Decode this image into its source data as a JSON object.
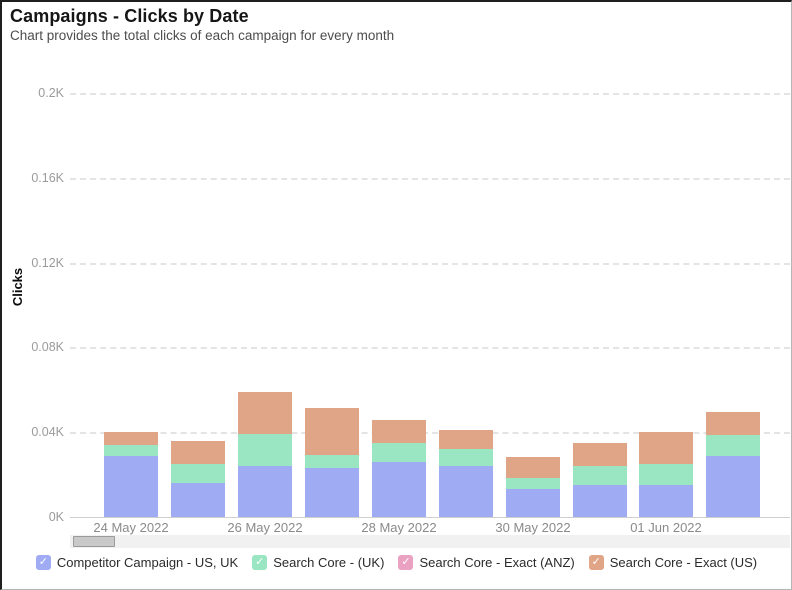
{
  "header": {
    "title": "Campaigns - Clicks by Date",
    "subtitle": "Chart provides the total clicks of each campaign for every month"
  },
  "legend": {
    "check_glyph": "✓",
    "position": "bottom"
  },
  "chart_data": {
    "type": "bar",
    "stacked": true,
    "title": "Campaigns - Clicks by Date",
    "ylabel": "Clicks",
    "xlabel": "",
    "grid": "dashed-horizontal",
    "legend_position": "bottom",
    "y_ticks": [
      "0K",
      "0.04K",
      "0.08K",
      "0.12K",
      "0.16K",
      "0.2K"
    ],
    "ylim_clicks": [
      0,
      200
    ],
    "num_bars": 10,
    "x_tick_labels": [
      "24 May 2022",
      "26 May 2022",
      "28 May 2022",
      "30 May 2022",
      "01 Jun 2022"
    ],
    "x_tick_bar_indices": [
      0,
      2,
      4,
      6,
      8
    ],
    "series": [
      {
        "name": "Competitor Campaign - US, UK",
        "color": "#9fabf2",
        "values": [
          29,
          16,
          24,
          23,
          26,
          24,
          13,
          15,
          15,
          29
        ]
      },
      {
        "name": "Search Core - (UK)",
        "color": "#9ae6c2",
        "values": [
          5,
          9,
          15,
          6,
          9,
          8,
          5,
          9,
          10,
          10
        ]
      },
      {
        "name": "Search Core - Exact (ANZ)",
        "color": "#eba2c2",
        "values": [
          0,
          0,
          0,
          0,
          0,
          0,
          0,
          0,
          0,
          0
        ]
      },
      {
        "name": "Search Core - Exact (US)",
        "color": "#e0a487",
        "values": [
          6,
          11,
          20,
          22,
          11,
          9,
          10,
          11,
          15,
          11
        ]
      }
    ],
    "bar_totals": [
      40,
      36,
      59,
      51,
      46,
      41,
      28,
      35,
      40,
      50
    ]
  }
}
